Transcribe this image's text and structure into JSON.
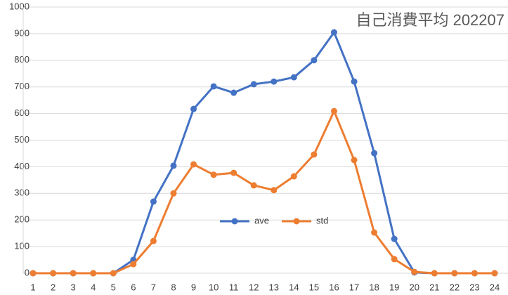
{
  "chart_data": {
    "type": "line",
    "title": "自己消費平均  202207",
    "categories": [
      "1",
      "2",
      "3",
      "4",
      "5",
      "6",
      "7",
      "8",
      "9",
      "10",
      "11",
      "12",
      "13",
      "14",
      "15",
      "16",
      "17",
      "18",
      "19",
      "20",
      "21",
      "22",
      "23",
      "24"
    ],
    "series": [
      {
        "name": "ave",
        "color": "#4472c4",
        "values": [
          0,
          0,
          0,
          0,
          0,
          50,
          269,
          404,
          617,
          702,
          678,
          710,
          720,
          736,
          800,
          905,
          720,
          451,
          129,
          3,
          0,
          0,
          0,
          0
        ]
      },
      {
        "name": "std",
        "color": "#ed7d31",
        "values": [
          0,
          0,
          0,
          0,
          0,
          34,
          121,
          300,
          409,
          370,
          377,
          330,
          312,
          364,
          446,
          609,
          425,
          153,
          53,
          5,
          0,
          0,
          0,
          0
        ]
      }
    ],
    "ylim": [
      0,
      1000
    ],
    "yticks": [
      0,
      100,
      200,
      300,
      400,
      500,
      600,
      700,
      800,
      900,
      1000
    ],
    "grid": true,
    "legend": "center"
  }
}
